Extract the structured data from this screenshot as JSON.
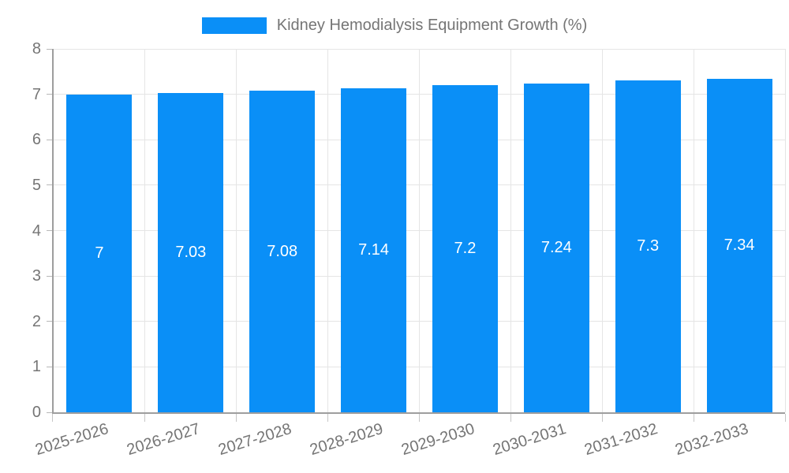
{
  "legend": {
    "label": "Kidney Hemodialysis Equipment Growth (%)",
    "swatch_color": "#0A8FF7"
  },
  "chart_data": {
    "type": "bar",
    "title": "Kidney Hemodialysis Equipment Growth (%)",
    "categories": [
      "2025-2026",
      "2026-2027",
      "2027-2028",
      "2028-2029",
      "2029-2030",
      "2030-2031",
      "2031-2032",
      "2032-2033"
    ],
    "values": [
      7,
      7.03,
      7.08,
      7.14,
      7.2,
      7.24,
      7.3,
      7.34
    ],
    "bar_labels": [
      "7",
      "7.03",
      "7.08",
      "7.14",
      "7.2",
      "7.24",
      "7.3",
      "7.34"
    ],
    "xlabel": "",
    "ylabel": "",
    "ylim": [
      0,
      8
    ],
    "y_ticks": [
      0,
      1,
      2,
      3,
      4,
      5,
      6,
      7,
      8
    ],
    "grid": true,
    "legend_position": "top",
    "bar_color": "#0A8FF7",
    "bar_label_color": "#ffffff",
    "axis_text_color": "#757575",
    "grid_color": "#e5e5e5",
    "axis_line_color": "#9e9e9e"
  }
}
